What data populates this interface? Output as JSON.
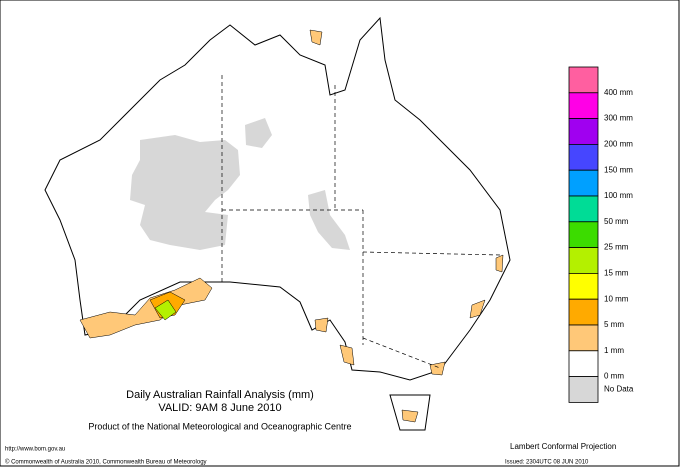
{
  "title": "Daily Australian Rainfall Analysis (mm)",
  "valid": "VALID: 9AM  8 June 2010",
  "product": "Product of the National Meteorological and Oceanographic Centre",
  "url": "http://www.bom.gov.au",
  "copyright": "© Commonwealth of Australia 2010, Commonwealth Bureau of Meteorology",
  "projection": "Lambert Conformal Projection",
  "issued": "Issued: 2304UTC 08 JUN 2010",
  "legend": [
    {
      "label": "400 mm",
      "color": "#ff5fa0"
    },
    {
      "label": "300 mm",
      "color": "#ff00e6"
    },
    {
      "label": "200 mm",
      "color": "#a000f0"
    },
    {
      "label": "150 mm",
      "color": "#4646ff"
    },
    {
      "label": "100 mm",
      "color": "#00a0ff"
    },
    {
      "label": "50 mm",
      "color": "#00dc96"
    },
    {
      "label": "25 mm",
      "color": "#3cdc00"
    },
    {
      "label": "15 mm",
      "color": "#b4f000"
    },
    {
      "label": "10 mm",
      "color": "#ffff00"
    },
    {
      "label": "5 mm",
      "color": "#ffaa00"
    },
    {
      "label": "1 mm",
      "color": "#ffc878"
    },
    {
      "label": "0 mm",
      "color": "#ffffff"
    },
    {
      "label": "No Data",
      "color": "#d7d7d7"
    }
  ]
}
